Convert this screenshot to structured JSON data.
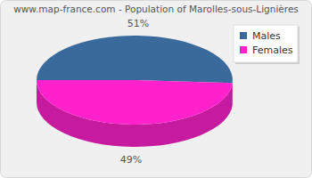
{
  "chart_data": {
    "type": "pie",
    "title": "www.map-france.com - Population of Marolles-sous-Lignières",
    "categories": [
      "Males",
      "Females"
    ],
    "values": [
      51,
      49
    ],
    "value_labels": [
      "51%",
      "49%"
    ],
    "colors": [
      "#3a6a9c",
      "#ff22cc"
    ],
    "data_labels": true,
    "legend": "top-right"
  }
}
